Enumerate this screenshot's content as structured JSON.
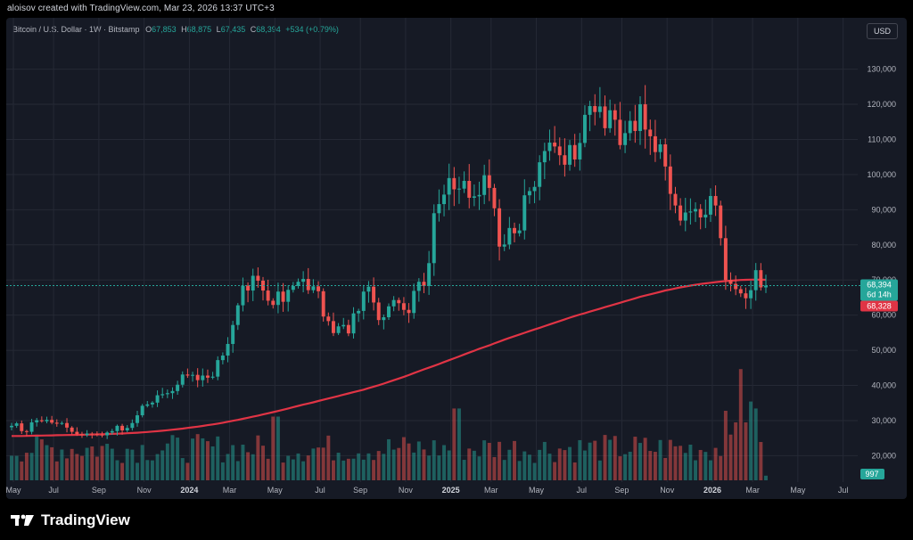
{
  "header": {
    "author_line": "aloisov created with TradingView.com, Mar 23, 2026 13:37 UTC+3"
  },
  "symbol": {
    "name": "Bitcoin / U.S. Dollar · 1W · Bitstamp",
    "open_label": "O",
    "open": "67,853",
    "high_label": "H",
    "high": "68,875",
    "low_label": "L",
    "low": "67,435",
    "close_label": "C",
    "close": "68,394",
    "change": "+534 (+0.79%)"
  },
  "currency_button": "USD",
  "footer": {
    "brand": "TradingView"
  },
  "colors": {
    "up": "#26a69a",
    "down": "#ef5350",
    "ma": "#e03445",
    "bg": "#161a25",
    "grid": "#252935"
  },
  "chart_data": {
    "type": "candlestick",
    "title": "Bitcoin / U.S. Dollar · 1W · Bitstamp",
    "ylim": [
      13000,
      137000
    ],
    "y_ticks": [
      "130,000",
      "120,000",
      "110,000",
      "100,000",
      "90,000",
      "80,000",
      "70,000",
      "60,000",
      "50,000",
      "40,000",
      "30,000",
      "20,000"
    ],
    "y_tick_values": [
      130000,
      120000,
      110000,
      100000,
      90000,
      80000,
      70000,
      60000,
      50000,
      40000,
      30000,
      20000
    ],
    "x_ticks": [
      "May",
      "Jul",
      "Sep",
      "Nov",
      "2024",
      "Mar",
      "May",
      "Jul",
      "Sep",
      "Nov",
      "2025",
      "Mar",
      "May",
      "Jul",
      "Sep",
      "Nov",
      "2026",
      "Mar",
      "May",
      "Jul"
    ],
    "x_tick_bold": [
      false,
      false,
      false,
      false,
      true,
      false,
      false,
      false,
      false,
      false,
      true,
      false,
      false,
      false,
      false,
      false,
      true,
      false,
      false,
      false
    ],
    "x_tick_index": [
      0,
      8,
      17,
      26,
      35,
      43,
      52,
      61,
      69,
      78,
      87,
      95,
      104,
      113,
      121,
      130,
      139,
      147,
      156,
      165
    ],
    "close_path": [
      28500,
      29200,
      27000,
      26800,
      29500,
      30100,
      29800,
      30200,
      29400,
      29100,
      29300,
      28000,
      26800,
      26100,
      25900,
      26300,
      26200,
      26000,
      25800,
      26600,
      27000,
      28500,
      27200,
      27900,
      29300,
      31500,
      34200,
      34600,
      35100,
      37200,
      37500,
      37800,
      38400,
      40200,
      43100,
      42800,
      43000,
      41500,
      42800,
      42200,
      42500,
      47200,
      48500,
      51800,
      57200,
      62800,
      68400,
      67000,
      71200,
      69800,
      67000,
      64100,
      62900,
      66700,
      63800,
      67200,
      68300,
      69500,
      70300,
      67100,
      68200,
      66800,
      59600,
      58300,
      54900,
      56800,
      57200,
      54800,
      60500,
      61200,
      66700,
      68100,
      63600,
      58600,
      59400,
      62500,
      64300,
      63400,
      61500,
      60600,
      66900,
      69500,
      68300,
      74800,
      89000,
      91600,
      94300,
      99000,
      95800,
      96000,
      98200,
      93400,
      93800,
      94200,
      99800,
      96200,
      90400,
      79500,
      80100,
      84800,
      83300,
      84100,
      94100,
      95300,
      96500,
      103500,
      106700,
      109100,
      108000,
      105500,
      102800,
      108400,
      104300,
      109000,
      117000,
      119500,
      117800,
      119400,
      113200,
      118300,
      115600,
      108400,
      111800,
      115300,
      112400,
      120000,
      112800,
      110900,
      106400,
      108600,
      102300,
      94500,
      91200,
      86900,
      89200,
      89500,
      90200,
      87800,
      88600,
      93900,
      91200,
      81900,
      70000,
      68900,
      67400,
      66200,
      64800,
      67100,
      72800,
      67900,
      68394
    ],
    "ma200": [
      25600,
      25600,
      25650,
      25700,
      25750,
      25800,
      25850,
      25900,
      25950,
      26000,
      26050,
      26100,
      26200,
      26300,
      26400,
      26550,
      26700,
      26900,
      27100,
      27350,
      27600,
      27900,
      28200,
      28550,
      28900,
      29300,
      29750,
      30200,
      30700,
      31200,
      31750,
      32300,
      32850,
      33450,
      34050,
      34650,
      35200,
      35800,
      36400,
      37000,
      37600,
      38200,
      38800,
      39500,
      40200,
      41000,
      41800,
      42600,
      43500,
      44400,
      45200,
      46100,
      47000,
      47900,
      48800,
      49700,
      50600,
      51400,
      52300,
      53200,
      54000,
      54800,
      55600,
      56400,
      57200,
      58000,
      58800,
      59600,
      60300,
      61000,
      61700,
      62400,
      63100,
      63800,
      64500,
      65200,
      65800,
      66400,
      67000,
      67500,
      68000,
      68400,
      68800,
      69100,
      69400,
      69650,
      69850,
      70000,
      70100,
      70100,
      70050
    ],
    "volume_scale_max": 100,
    "last_price": "68,394",
    "countdown": "6d 14h",
    "ma_value": "68,328",
    "volume_value": "997"
  }
}
